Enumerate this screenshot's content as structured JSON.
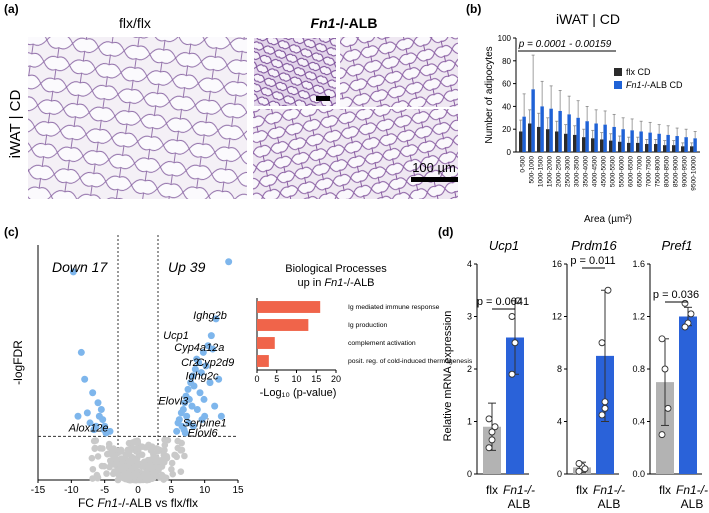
{
  "panels": {
    "a": "(a)",
    "b": "(b)",
    "c": "(c)",
    "d": "(d)"
  },
  "histology": {
    "col1_title": "flx/flx",
    "col2_title_italic": "Fn1",
    "col2_title_rest": "-/-ALB",
    "row_label": "iWAT | CD",
    "scalebar_label": "100 µm"
  },
  "bar_hist": {
    "title": "iWAT | CD",
    "pvalue": "p = 0.0001 - 0.00159",
    "ylabel": "Number of adipocytes",
    "xlabel": "Area (µm²)",
    "legend": [
      {
        "label": "flx CD",
        "color": "#2b2b2b"
      },
      {
        "label_italic": "Fn1",
        "label": "-/-ALB CD",
        "color": "#1f62d6"
      }
    ],
    "colors": {
      "flx": "#2b2b2b",
      "ko": "#1f62d6",
      "err": "#888888"
    }
  },
  "volcano": {
    "down_label": "Down 17",
    "up_label": "Up 39",
    "ylabel": "-logFDR",
    "xlabel_prefix": "FC ",
    "xlabel_italic": "Fn1",
    "xlabel_suffix": "-/-ALB vs flx/flx",
    "genes": [
      "Ighg2b",
      "Ucp1",
      "Cyp4a12a",
      "Cr2",
      "Cyp2d9",
      "Ighg2c",
      "Elovl3",
      "Serpine1",
      "Elovl6",
      "Alox12e"
    ]
  },
  "bio": {
    "title1": "Biological Processes",
    "title2_prefix": "up in ",
    "title2_italic": "Fn1",
    "title2_suffix": "-/-ALB",
    "xlabel": "-Log₁₀ (p-value)",
    "color": "#f0644a"
  },
  "qpcr": {
    "ylabel": "Relative mRNA expression",
    "gene1": "Ucp1",
    "gene2": "Prdm16",
    "gene3": "Pref1",
    "p1": "p = 0.0041",
    "p2": "p = 0.011",
    "p3": "p = 0.036",
    "cat_flx": "flx",
    "cat_ko_italic": "Fn1-/-",
    "cat_ko2": "ALB",
    "colors": {
      "flx": "#b3b3b3",
      "ko": "#2a62d9"
    }
  },
  "chart_data": [
    {
      "type": "bar",
      "title": "iWAT | CD",
      "xlabel": "Area (µm²)",
      "ylabel": "Number of adipocytes",
      "ylim": [
        0,
        100
      ],
      "yticks": [
        0,
        20,
        40,
        60,
        80,
        100
      ],
      "categories": [
        "0-500",
        "500-1000",
        "1000-1500",
        "1500-2000",
        "2000-2500",
        "2500-3000",
        "3000-3500",
        "3500-4000",
        "4000-4500",
        "4500-5000",
        "5000-5500",
        "5500-6000",
        "6000-6500",
        "6500-7000",
        "7000-7500",
        "7500-8000",
        "8000-8500",
        "8500-9000",
        "9000-9500",
        "9500-10000"
      ],
      "series": [
        {
          "name": "flx CD",
          "values": [
            18,
            25,
            22,
            20,
            18,
            16,
            15,
            13,
            12,
            11,
            10,
            9,
            8,
            8,
            7,
            7,
            6,
            6,
            5,
            5
          ],
          "errors": [
            10,
            12,
            12,
            10,
            9,
            8,
            8,
            7,
            7,
            6,
            6,
            5,
            5,
            5,
            4,
            4,
            4,
            4,
            3,
            3
          ]
        },
        {
          "name": "Fn1-/-ALB CD",
          "values": [
            31,
            55,
            40,
            38,
            36,
            33,
            30,
            27,
            25,
            24,
            22,
            20,
            19,
            18,
            17,
            16,
            15,
            14,
            13,
            12
          ],
          "errors": [
            20,
            30,
            22,
            20,
            18,
            16,
            15,
            13,
            12,
            12,
            11,
            10,
            10,
            9,
            9,
            8,
            8,
            7,
            7,
            6
          ]
        }
      ],
      "annotation": "p = 0.0001 - 0.00159"
    },
    {
      "type": "scatter",
      "title": "",
      "xlabel": "FC Fn1-/-ALB vs flx/flx",
      "ylabel": "-logFDR",
      "xlim": [
        -15,
        15
      ],
      "ylim": [
        0,
        7
      ],
      "xticks": [
        -15,
        -10,
        -5,
        0,
        5,
        10,
        15
      ],
      "fdr_threshold": 1.3,
      "fc_thresholds": [
        -3,
        3
      ],
      "down_count": "Down 17",
      "up_count": "Up 39",
      "down": [
        [
          -9.7,
          6.2
        ],
        [
          -8.5,
          3.8
        ],
        [
          -8.0,
          3.0
        ],
        [
          -6.0,
          2.3
        ],
        [
          -5.5,
          2.1
        ],
        [
          -6.8,
          2.6
        ],
        [
          -7.6,
          2.0
        ],
        [
          -5.3,
          1.8
        ],
        [
          -9.0,
          1.9
        ],
        [
          -5.1,
          1.5
        ],
        [
          -6.3,
          1.6
        ],
        [
          -4.8,
          1.4
        ],
        [
          -7.2,
          1.7
        ],
        [
          -5.8,
          1.9
        ],
        [
          -4.2,
          1.45
        ],
        [
          -5.0,
          1.6
        ],
        [
          -6.6,
          1.5
        ]
      ],
      "up": [
        [
          13.6,
          6.5
        ],
        [
          11.7,
          4.8
        ],
        [
          11.0,
          4.3
        ],
        [
          10.5,
          4.0
        ],
        [
          9.8,
          3.8
        ],
        [
          9.1,
          3.5
        ],
        [
          8.6,
          3.3
        ],
        [
          8.2,
          3.1
        ],
        [
          7.9,
          2.9
        ],
        [
          7.5,
          2.7
        ],
        [
          7.2,
          2.5
        ],
        [
          7.0,
          2.3
        ],
        [
          6.8,
          2.1
        ],
        [
          6.5,
          2.0
        ],
        [
          6.2,
          1.8
        ],
        [
          6.0,
          1.7
        ],
        [
          8.8,
          3.6
        ],
        [
          10.2,
          3.4
        ],
        [
          9.5,
          3.2
        ],
        [
          8.4,
          2.8
        ],
        [
          7.7,
          2.4
        ],
        [
          10.8,
          2.9
        ],
        [
          9.3,
          2.6
        ],
        [
          11.2,
          3.9
        ],
        [
          8.1,
          2.2
        ],
        [
          6.6,
          1.6
        ],
        [
          7.3,
          1.9
        ],
        [
          9.9,
          2.4
        ],
        [
          12.1,
          3.0
        ],
        [
          7.6,
          1.7
        ],
        [
          8.9,
          2.1
        ],
        [
          10.0,
          1.9
        ],
        [
          11.5,
          2.2
        ],
        [
          6.9,
          1.5
        ],
        [
          5.8,
          1.45
        ],
        [
          9.6,
          1.8
        ],
        [
          8.3,
          1.6
        ],
        [
          12.5,
          1.9
        ],
        [
          7.1,
          1.4
        ]
      ],
      "labels": [
        {
          "gene": "Ighg2b",
          "x": 10.8,
          "y": 4.8
        },
        {
          "gene": "Ucp1",
          "x": 5.7,
          "y": 4.2
        },
        {
          "gene": "Cyp4a12a",
          "x": 9.2,
          "y": 3.85
        },
        {
          "gene": "Cr2",
          "x": 7.8,
          "y": 3.4
        },
        {
          "gene": "Cyp2d9",
          "x": 11.6,
          "y": 3.4
        },
        {
          "gene": "Ighg2c",
          "x": 9.6,
          "y": 3.0
        },
        {
          "gene": "Elovl3",
          "x": 5.3,
          "y": 2.25
        },
        {
          "gene": "Serpine1",
          "x": 10.0,
          "y": 1.6
        },
        {
          "gene": "Elovl6",
          "x": 9.7,
          "y": 1.3
        },
        {
          "gene": "Alox12e",
          "x": -7.4,
          "y": 1.45
        }
      ]
    },
    {
      "type": "bar",
      "orientation": "horizontal",
      "title": "Biological Processes up in Fn1-/-ALB",
      "xlabel": "-Log10 (p-value)",
      "xlim": [
        0,
        20
      ],
      "xticks": [
        0,
        5,
        10,
        15,
        20
      ],
      "categories": [
        "Ig mediated immune response",
        "Ig production",
        "complement activation",
        "posit. reg. of cold-induced thermogenesis"
      ],
      "values": [
        16,
        13,
        4.5,
        3
      ]
    },
    {
      "type": "bar",
      "title": "Ucp1",
      "ylabel": "Relative mRNA expression",
      "ylim": [
        0,
        4
      ],
      "yticks": [
        0,
        1,
        2,
        3,
        4
      ],
      "categories": [
        "flx",
        "Fn1-/- ALB"
      ],
      "values": [
        0.9,
        2.6
      ],
      "errors": [
        0.45,
        0.7
      ],
      "points": [
        [
          0.5,
          0.8,
          0.9,
          1.05,
          0.65
        ],
        [
          1.9,
          2.5,
          3.3,
          3.0
        ]
      ],
      "annotation": "p = 0.0041"
    },
    {
      "type": "bar",
      "title": "Prdm16",
      "ylim": [
        0,
        16
      ],
      "yticks": [
        0,
        4,
        8,
        12,
        16
      ],
      "categories": [
        "flx",
        "Fn1-/- ALB"
      ],
      "values": [
        0.5,
        9.0
      ],
      "errors": [
        0.4,
        5.0
      ],
      "points": [
        [
          0.2,
          0.6,
          0.4,
          0.8
        ],
        [
          4.5,
          5.0,
          14.0,
          10.0,
          5.5
        ]
      ],
      "annotation": "p = 0.011"
    },
    {
      "type": "bar",
      "title": "Pref1",
      "ylim": [
        0,
        1.6
      ],
      "yticks": [
        0,
        0.4,
        0.8,
        1.2,
        1.6
      ],
      "categories": [
        "flx",
        "Fn1-/- ALB"
      ],
      "values": [
        0.7,
        1.2
      ],
      "errors": [
        0.33,
        0.07
      ],
      "points": [
        [
          1.03,
          0.8,
          0.5,
          0.3
        ],
        [
          1.3,
          1.15,
          1.22,
          1.12
        ]
      ],
      "annotation": "p = 0.036"
    }
  ]
}
